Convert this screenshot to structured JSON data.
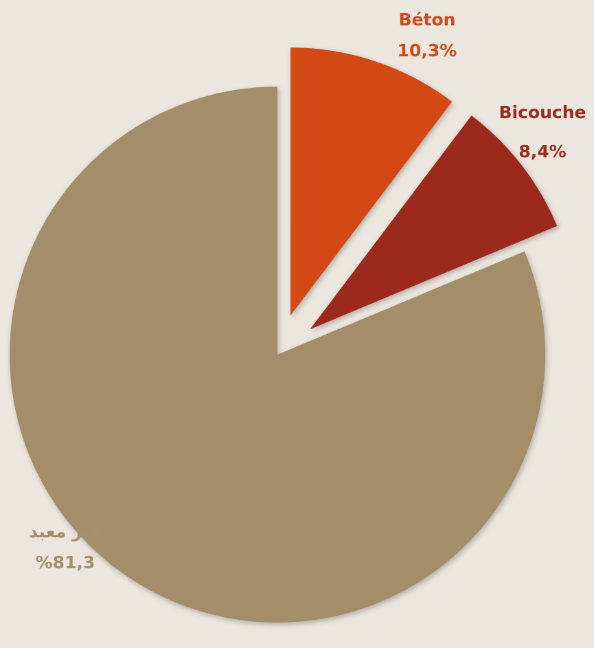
{
  "chart_data": {
    "type": "pie",
    "categories": [
      "Béton",
      "Bicouche",
      "غير معبد"
    ],
    "values": [
      10.3,
      8.4,
      81.3
    ],
    "value_labels": [
      "10,3%",
      "8,4%",
      "%81,3"
    ],
    "colors": [
      "#d24a17",
      "#9c2b1e",
      "#a48e6b"
    ],
    "label_colors": [
      "#d04a1a",
      "#9b2c1f",
      "#a48f6c"
    ]
  }
}
